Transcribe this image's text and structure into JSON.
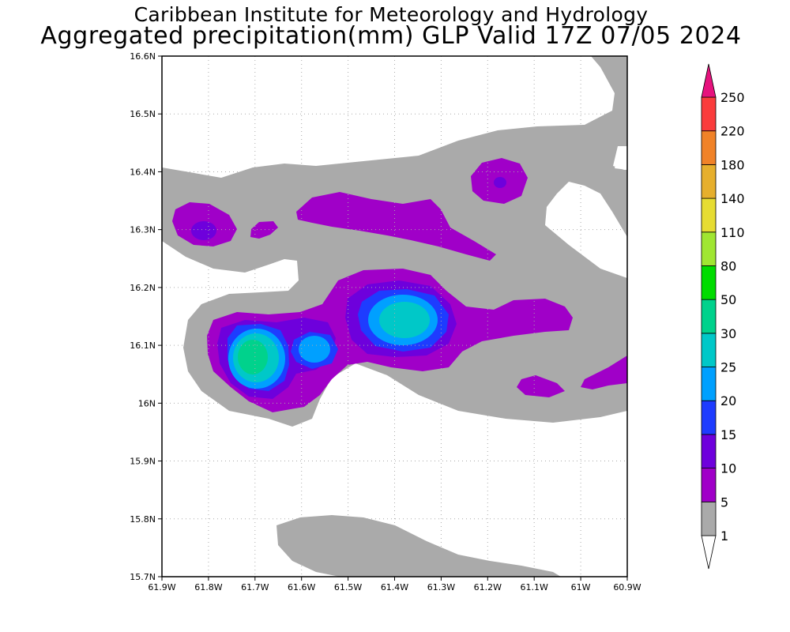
{
  "title": {
    "line1": "Caribbean Institute for Meteorology and Hydrology",
    "line2": "Aggregated precipitation(mm) GLP Valid 17Z 07/05 2024"
  },
  "map": {
    "x_ticks": [
      "61.9W",
      "61.8W",
      "61.7W",
      "61.6W",
      "61.5W",
      "61.4W",
      "61.3W",
      "61.2W",
      "61.1W",
      "61W",
      "60.9W"
    ],
    "y_ticks": [
      "16.6N",
      "16.5N",
      "16.4N",
      "16.3N",
      "16.2N",
      "16.1N",
      "16N",
      "15.9N",
      "15.8N",
      "15.7N"
    ],
    "lon_range": [
      -61.9,
      -60.9
    ],
    "lat_range": [
      15.7,
      16.6
    ],
    "grid": "dotted"
  },
  "colorbar": {
    "levels": [
      "1",
      "5",
      "10",
      "15",
      "20",
      "25",
      "30",
      "50",
      "80",
      "110",
      "140",
      "180",
      "220",
      "250"
    ],
    "colors": [
      "#aaaaaa",
      "#a000c8",
      "#6e00dc",
      "#1e3cff",
      "#00a0ff",
      "#00c8c8",
      "#00d28c",
      "#00dc00",
      "#a0e632",
      "#e6dc32",
      "#e6af2d",
      "#f08228",
      "#fa3c3c",
      "#f00082"
    ],
    "lower_extension_color": "#ffffff",
    "upper_extension_color": "#e6127d"
  },
  "colors": {
    "level_1": "#aaaaaa",
    "level_5": "#a000c8",
    "level_10": "#6e00dc",
    "level_15": "#1e3cff",
    "level_20": "#00a0ff",
    "level_25": "#00c8c8",
    "level_30": "#00d28c"
  }
}
